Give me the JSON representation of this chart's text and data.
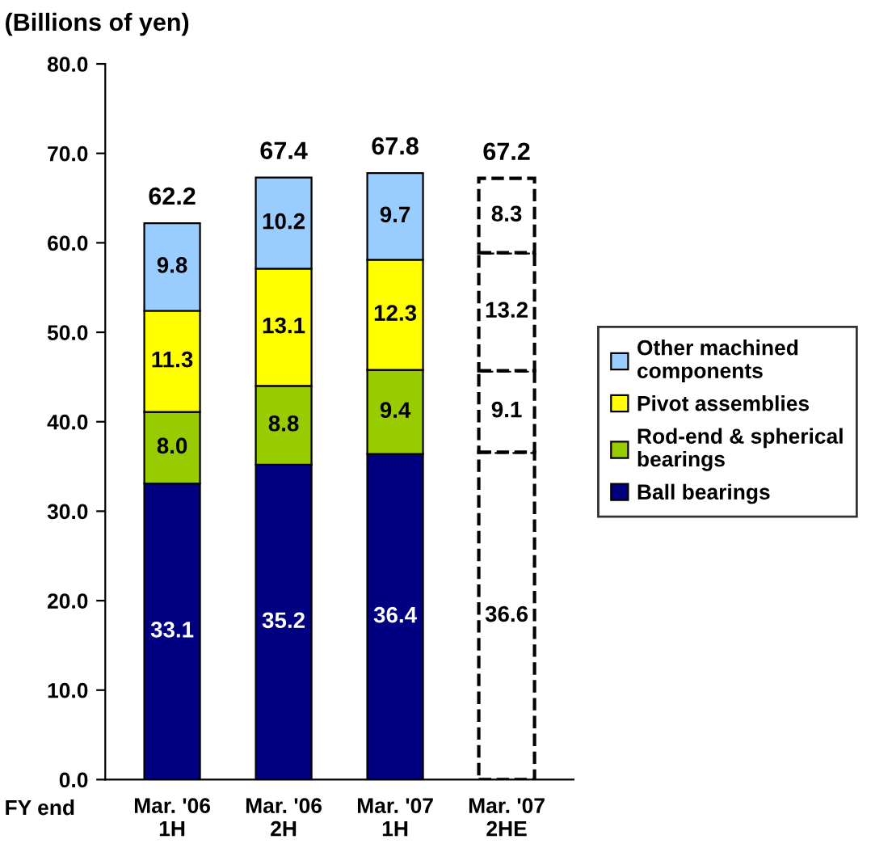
{
  "chart_data": {
    "type": "bar",
    "stacked": true,
    "ylabel": "(Billions of yen)",
    "categories": [
      "Mar. '06\n1H",
      "Mar. '06\n2H",
      "Mar. '07\n1H",
      "Mar. '07\n2HE"
    ],
    "series": [
      {
        "name": "Ball bearings",
        "color": "#000080",
        "colors": [
          "#000080",
          "#000080",
          "#000080",
          "#ffffff"
        ],
        "values": [
          33.1,
          35.2,
          36.4,
          36.6
        ],
        "value_labels": [
          "33.1",
          "35.2",
          "36.4",
          "36.6"
        ]
      },
      {
        "name": "Rod-end & spherical\nbearings",
        "color": "#99cc00",
        "colors": [
          "#99cc00",
          "#99cc00",
          "#99cc00",
          "#ffffff"
        ],
        "values": [
          8.0,
          8.8,
          9.4,
          9.1
        ],
        "value_labels": [
          "8.0",
          "8.8",
          "9.4",
          "9.1"
        ]
      },
      {
        "name": "Pivot assemblies",
        "color": "#ffff00",
        "colors": [
          "#ffff00",
          "#ffff00",
          "#ffff00",
          "#ffffff"
        ],
        "values": [
          11.3,
          13.1,
          12.3,
          13.2
        ],
        "value_labels": [
          "11.3",
          "13.1",
          "12.3",
          "13.2"
        ]
      },
      {
        "name": "Other machined\ncomponents",
        "color": "#99ccff",
        "colors": [
          "#99ccff",
          "#99ccff",
          "#99ccff",
          "#ffffff"
        ],
        "values": [
          9.8,
          10.2,
          9.7,
          8.3
        ],
        "value_labels": [
          "9.8",
          "10.2",
          "9.7",
          "8.3"
        ]
      }
    ],
    "totals": [
      "62.2",
      "67.4",
      "67.8",
      "67.2"
    ],
    "ylim": [
      0,
      80
    ],
    "yticks": [
      {
        "value": 0,
        "label": "0.0"
      },
      {
        "value": 10,
        "label": "10.0"
      },
      {
        "value": 20,
        "label": "20.0"
      },
      {
        "value": 30,
        "label": "30.0"
      },
      {
        "value": 40,
        "label": "40.0"
      },
      {
        "value": 50,
        "label": "50.0"
      },
      {
        "value": 60,
        "label": "60.0"
      },
      {
        "value": 70,
        "label": "70.0"
      },
      {
        "value": 80,
        "label": "80.0"
      }
    ],
    "annotations": [
      "FY end"
    ],
    "legend": "right",
    "grid": false
  }
}
